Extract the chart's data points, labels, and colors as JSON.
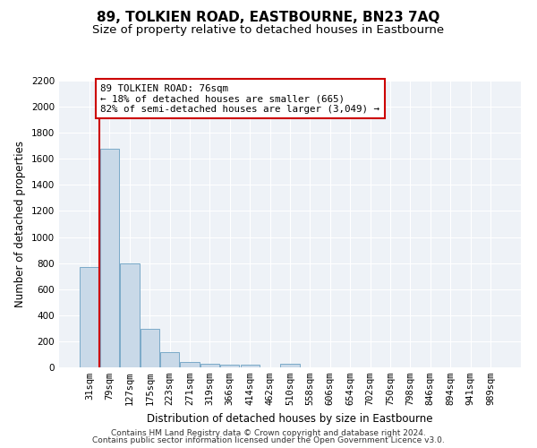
{
  "title": "89, TOLKIEN ROAD, EASTBOURNE, BN23 7AQ",
  "subtitle": "Size of property relative to detached houses in Eastbourne",
  "xlabel": "Distribution of detached houses by size in Eastbourne",
  "ylabel": "Number of detached properties",
  "footer_line1": "Contains HM Land Registry data © Crown copyright and database right 2024.",
  "footer_line2": "Contains public sector information licensed under the Open Government Licence v3.0.",
  "categories": [
    "31sqm",
    "79sqm",
    "127sqm",
    "175sqm",
    "223sqm",
    "271sqm",
    "319sqm",
    "366sqm",
    "414sqm",
    "462sqm",
    "510sqm",
    "558sqm",
    "606sqm",
    "654sqm",
    "702sqm",
    "750sqm",
    "798sqm",
    "846sqm",
    "894sqm",
    "941sqm",
    "989sqm"
  ],
  "values": [
    770,
    1680,
    795,
    295,
    115,
    40,
    25,
    20,
    20,
    0,
    25,
    0,
    0,
    0,
    0,
    0,
    0,
    0,
    0,
    0,
    0
  ],
  "bar_color": "#c9d9e8",
  "bar_edge_color": "#7aaac8",
  "annotation_text_line1": "89 TOLKIEN ROAD: 76sqm",
  "annotation_text_line2": "← 18% of detached houses are smaller (665)",
  "annotation_text_line3": "82% of semi-detached houses are larger (3,049) →",
  "annotation_box_color": "#cc0000",
  "ylim": [
    0,
    2200
  ],
  "yticks": [
    0,
    200,
    400,
    600,
    800,
    1000,
    1200,
    1400,
    1600,
    1800,
    2000,
    2200
  ],
  "bg_color": "#eef2f7",
  "grid_color": "#ffffff",
  "title_fontsize": 11,
  "subtitle_fontsize": 9.5,
  "axis_label_fontsize": 8.5,
  "tick_fontsize": 7.5,
  "footer_fontsize": 6.5
}
